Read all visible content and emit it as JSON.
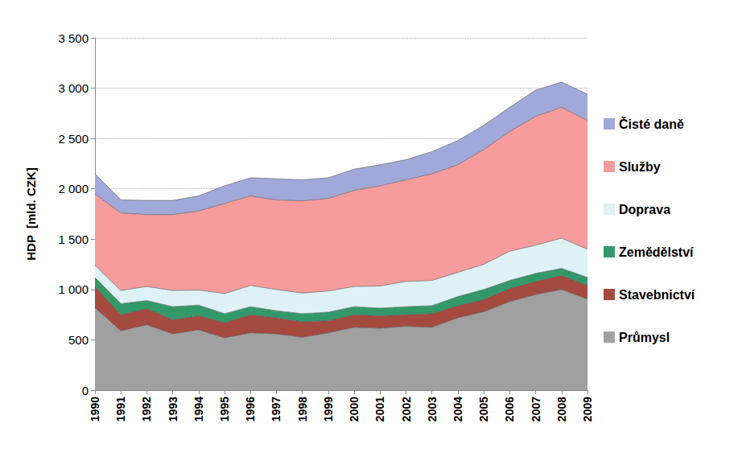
{
  "chart_data": {
    "type": "area",
    "stacked": true,
    "grid": true,
    "legend": "right",
    "y_label": "HDP  [mld. CZK]",
    "categories": [
      "1990",
      "1991",
      "1992",
      "1993",
      "1994",
      "1995",
      "1996",
      "1997",
      "1998",
      "1999",
      "2000",
      "2001",
      "2002",
      "2003",
      "2004",
      "2005",
      "2006",
      "2007",
      "2008",
      "2009"
    ],
    "ylim": [
      0,
      3500
    ],
    "yticks": [
      0,
      500,
      {
        "value": 1000,
        "label": "1 000"
      },
      {
        "value": 1500,
        "label": "1 500"
      },
      {
        "value": 2000,
        "label": "2 000"
      },
      {
        "value": 2500,
        "label": "2 500"
      },
      {
        "value": 3000,
        "label": "3 000"
      },
      {
        "value": 3500,
        "label": "3 500"
      }
    ],
    "series": [
      {
        "name": "Průmysl",
        "color": "#a0a0a0",
        "values": [
          820,
          590,
          650,
          560,
          600,
          520,
          570,
          560,
          525,
          570,
          625,
          615,
          635,
          625,
          720,
          780,
          880,
          950,
          1000,
          905
        ]
      },
      {
        "name": "Stavebnictví",
        "color": "#a54a3f",
        "values": [
          210,
          160,
          160,
          140,
          140,
          150,
          180,
          160,
          155,
          120,
          125,
          125,
          115,
          135,
          120,
          120,
          130,
          130,
          140,
          135
        ]
      },
      {
        "name": "Zemědělství",
        "color": "#33996b",
        "values": [
          90,
          110,
          80,
          130,
          105,
          90,
          80,
          70,
          80,
          85,
          80,
          75,
          80,
          80,
          90,
          100,
          80,
          80,
          70,
          80
        ]
      },
      {
        "name": "Doprava",
        "color": "#def2f6",
        "values": [
          120,
          130,
          140,
          160,
          150,
          200,
          210,
          210,
          205,
          210,
          200,
          220,
          250,
          250,
          240,
          250,
          290,
          280,
          300,
          280
        ]
      },
      {
        "name": "Služby",
        "color": "#f69c9c",
        "values": [
          710,
          770,
          715,
          755,
          785,
          895,
          890,
          890,
          915,
          920,
          955,
          995,
          1010,
          1060,
          1070,
          1140,
          1190,
          1280,
          1300,
          1280
        ]
      },
      {
        "name": "Čisté daně",
        "color": "#a0a9d9",
        "values": [
          200,
          130,
          140,
          140,
          150,
          175,
          180,
          210,
          210,
          205,
          210,
          210,
          200,
          220,
          240,
          240,
          240,
          260,
          250,
          260
        ]
      }
    ]
  }
}
